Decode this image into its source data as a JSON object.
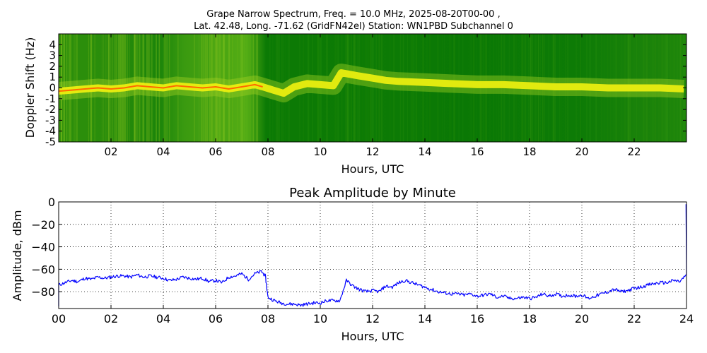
{
  "spectrogram": {
    "title_line1": "Grape Narrow Spectrum, Freq. = 10.0 MHz, 2025-08-20T00-00 ,",
    "title_line2": "Lat.  42.48, Long. -71.62 (GridFN42el) Station: WN1PBD Subchannel 0",
    "xlabel": "Hours, UTC",
    "ylabel": "Doppler Shift (Hz)",
    "x_ticks": [
      "02",
      "04",
      "06",
      "08",
      "10",
      "12",
      "14",
      "16",
      "18",
      "20",
      "22"
    ],
    "y_ticks": [
      "4",
      "3",
      "2",
      "1",
      "0",
      "-1",
      "-2",
      "-3",
      "-4",
      "-5"
    ]
  },
  "amplitude": {
    "title": "Peak Amplitude by Minute",
    "xlabel": "Hours, UTC",
    "ylabel": "Amplitude, dBm",
    "x_ticks": [
      "00",
      "02",
      "04",
      "06",
      "08",
      "10",
      "12",
      "14",
      "16",
      "18",
      "20",
      "22",
      "24"
    ],
    "y_ticks": [
      "0",
      "−20",
      "−40",
      "−60",
      "−80"
    ]
  },
  "colors": {
    "background_green": "#0a7a05",
    "noise_yellow_green": "#9ccf22",
    "trace_yellow": "#f2f20f",
    "trace_peak": "#ff6a00",
    "amplitude_line": "#0000ff"
  },
  "chart_data": [
    {
      "type": "heatmap",
      "title": "Grape Narrow Spectrum, Freq. = 10.0 MHz, 2025-08-20T00-00 , Lat.  42.48, Long. -71.62 (GridFN42el) Station: WN1PBD Subchannel 0",
      "xlabel": "Hours, UTC",
      "ylabel": "Doppler Shift (Hz)",
      "xlim": [
        0,
        24
      ],
      "ylim": [
        -5,
        5
      ],
      "doppler_trace": {
        "hours": [
          0,
          0.5,
          1,
          1.5,
          2,
          2.5,
          3,
          3.5,
          4,
          4.5,
          5,
          5.5,
          6,
          6.5,
          7,
          7.5,
          7.8,
          8.2,
          8.6,
          9,
          9.5,
          10,
          10.5,
          10.8,
          11.5,
          12,
          12.5,
          13,
          14,
          15,
          16,
          17,
          18,
          19,
          20,
          21,
          22,
          23,
          23.9
        ],
        "shift_hz": [
          -0.3,
          -0.2,
          -0.1,
          0.0,
          -0.1,
          0.0,
          0.2,
          0.1,
          0.0,
          0.2,
          0.1,
          0.0,
          0.1,
          -0.1,
          0.1,
          0.3,
          0.1,
          -0.2,
          -0.5,
          0.1,
          0.4,
          0.3,
          0.2,
          1.4,
          1.1,
          0.9,
          0.7,
          0.6,
          0.5,
          0.4,
          0.3,
          0.3,
          0.2,
          0.1,
          0.1,
          0.0,
          0.0,
          0.0,
          -0.1
        ]
      }
    },
    {
      "type": "line",
      "title": "Peak Amplitude by Minute",
      "xlabel": "Hours, UTC",
      "ylabel": "Amplitude, dBm",
      "xlim": [
        0,
        24
      ],
      "ylim": [
        -95,
        0
      ],
      "grid": true,
      "x": [
        0,
        0.25,
        0.5,
        0.75,
        1,
        1.25,
        1.5,
        1.75,
        2,
        2.25,
        2.5,
        2.75,
        3,
        3.25,
        3.5,
        3.75,
        4,
        4.25,
        4.5,
        4.75,
        5,
        5.25,
        5.5,
        5.75,
        6,
        6.25,
        6.5,
        6.75,
        7,
        7.25,
        7.5,
        7.75,
        7.9,
        8,
        8.25,
        8.5,
        8.75,
        9,
        9.25,
        9.5,
        9.75,
        10,
        10.25,
        10.5,
        10.75,
        11,
        11.25,
        11.5,
        11.75,
        12,
        12.25,
        12.5,
        12.75,
        13,
        13.25,
        13.5,
        13.75,
        14,
        14.25,
        14.5,
        14.75,
        15,
        15.25,
        15.5,
        15.75,
        16,
        16.25,
        16.5,
        16.75,
        17,
        17.25,
        17.5,
        17.75,
        18,
        18.25,
        18.5,
        18.75,
        19,
        19.25,
        19.5,
        19.75,
        20,
        20.25,
        20.5,
        20.75,
        21,
        21.25,
        21.5,
        21.75,
        22,
        22.25,
        22.5,
        22.75,
        23,
        23.25,
        23.5,
        23.75,
        24
      ],
      "series": [
        {
          "values": [
            -74,
            -72,
            -70,
            -71,
            -68,
            -69,
            -67,
            -68,
            -67,
            -66,
            -66,
            -67,
            -65,
            -67,
            -66,
            -67,
            -68,
            -70,
            -69,
            -67,
            -68,
            -69,
            -68,
            -71,
            -70,
            -72,
            -67,
            -66,
            -64,
            -69,
            -64,
            -62,
            -66,
            -85,
            -88,
            -90,
            -91,
            -91,
            -92,
            -91,
            -90,
            -90,
            -88,
            -88,
            -88,
            -70,
            -75,
            -78,
            -80,
            -79,
            -80,
            -75,
            -76,
            -72,
            -70,
            -72,
            -74,
            -76,
            -78,
            -80,
            -81,
            -82,
            -82,
            -83,
            -82,
            -84,
            -83,
            -82,
            -85,
            -84,
            -86,
            -86,
            -85,
            -86,
            -85,
            -82,
            -84,
            -82,
            -84,
            -83,
            -84,
            -83,
            -86,
            -84,
            -82,
            -80,
            -78,
            -80,
            -79,
            -77,
            -76,
            -74,
            -73,
            -72,
            -72,
            -70,
            -71,
            -65
          ]
        }
      ]
    }
  ]
}
